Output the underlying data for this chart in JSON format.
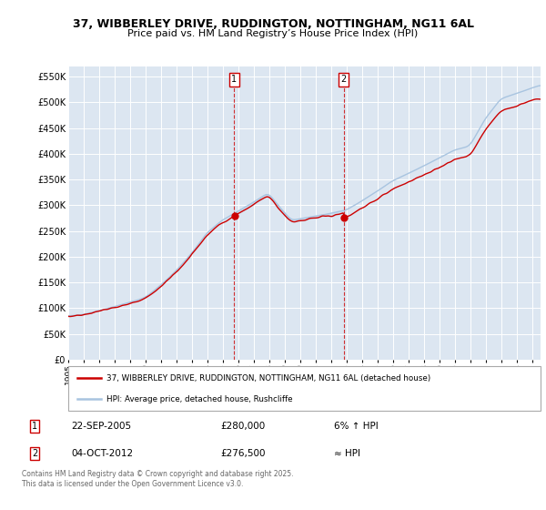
{
  "title": "37, WIBBERLEY DRIVE, RUDDINGTON, NOTTINGHAM, NG11 6AL",
  "subtitle": "Price paid vs. HM Land Registry’s House Price Index (HPI)",
  "ylabel_ticks": [
    "£0",
    "£50K",
    "£100K",
    "£150K",
    "£200K",
    "£250K",
    "£300K",
    "£350K",
    "£400K",
    "£450K",
    "£500K",
    "£550K"
  ],
  "ytick_values": [
    0,
    50000,
    100000,
    150000,
    200000,
    250000,
    300000,
    350000,
    400000,
    450000,
    500000,
    550000
  ],
  "ylim": [
    0,
    570000
  ],
  "background_color": "#ffffff",
  "plot_bg_color": "#dce6f1",
  "grid_color": "#ffffff",
  "red_line_color": "#cc0000",
  "blue_line_color": "#a8c4e0",
  "sale1_year": 2005.72,
  "sale2_year": 2012.78,
  "sale1_price": 280000,
  "sale2_price": 276500,
  "annotation1": [
    "1",
    "22-SEP-2005",
    "£280,000",
    "6% ↑ HPI"
  ],
  "annotation2": [
    "2",
    "04-OCT-2012",
    "£276,500",
    "≈ HPI"
  ],
  "legend_line1": "37, WIBBERLEY DRIVE, RUDDINGTON, NOTTINGHAM, NG11 6AL (detached house)",
  "legend_line2": "HPI: Average price, detached house, Rushcliffe",
  "footer": "Contains HM Land Registry data © Crown copyright and database right 2025.\nThis data is licensed under the Open Government Licence v3.0."
}
